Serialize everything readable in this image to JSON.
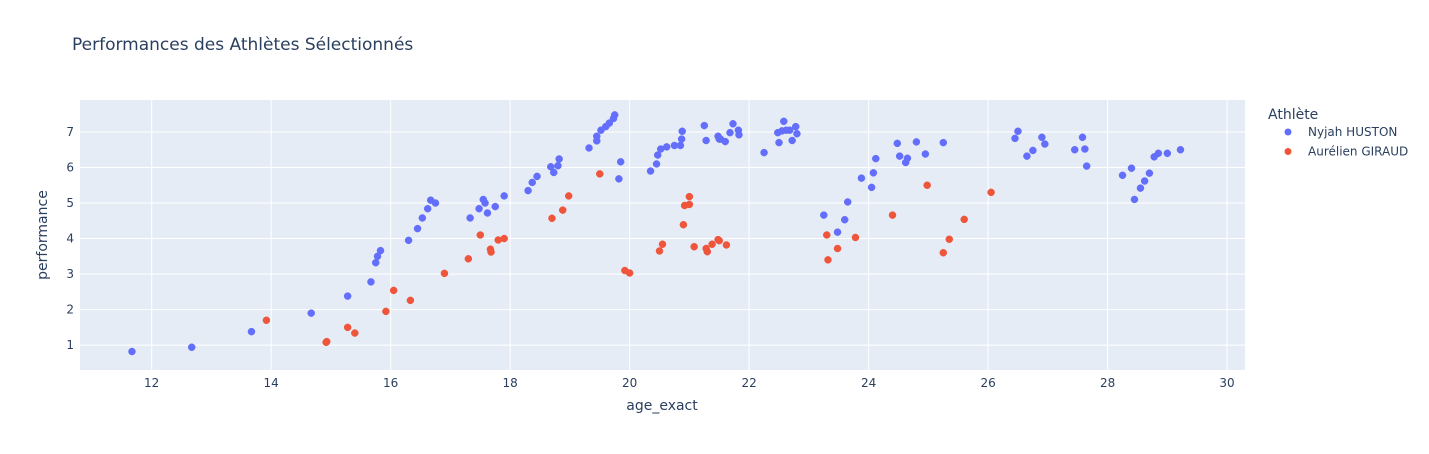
{
  "chart_data": {
    "type": "scatter",
    "title": "Performances des Athlètes Sélectionnés",
    "xlabel": "age_exact",
    "ylabel": "performance",
    "xlim": [
      10.8,
      30.3
    ],
    "ylim": [
      0.3,
      7.9
    ],
    "x_ticks": [
      12,
      14,
      16,
      18,
      20,
      22,
      24,
      26,
      28,
      30
    ],
    "y_ticks": [
      1,
      2,
      3,
      4,
      5,
      6,
      7
    ],
    "grid": true,
    "legend_title": "Athlète",
    "legend_position": "right",
    "series": [
      {
        "name": "Nyjah HUSTON",
        "color": "#636efa",
        "points": [
          [
            11.67,
            0.82
          ],
          [
            12.67,
            0.94
          ],
          [
            13.67,
            1.38
          ],
          [
            14.67,
            1.9
          ],
          [
            15.28,
            2.38
          ],
          [
            15.67,
            2.78
          ],
          [
            15.75,
            3.32
          ],
          [
            15.78,
            3.5
          ],
          [
            15.83,
            3.66
          ],
          [
            16.3,
            3.95
          ],
          [
            16.45,
            4.28
          ],
          [
            16.53,
            4.58
          ],
          [
            16.62,
            4.84
          ],
          [
            16.67,
            5.08
          ],
          [
            16.75,
            5.0
          ],
          [
            17.33,
            4.58
          ],
          [
            17.48,
            4.84
          ],
          [
            17.55,
            5.1
          ],
          [
            17.58,
            5.0
          ],
          [
            17.62,
            4.72
          ],
          [
            17.75,
            4.9
          ],
          [
            17.9,
            5.2
          ],
          [
            18.3,
            5.35
          ],
          [
            18.37,
            5.58
          ],
          [
            18.45,
            5.75
          ],
          [
            18.68,
            6.02
          ],
          [
            18.73,
            5.86
          ],
          [
            18.8,
            6.05
          ],
          [
            18.82,
            6.24
          ],
          [
            19.32,
            6.55
          ],
          [
            19.45,
            6.75
          ],
          [
            19.45,
            6.88
          ],
          [
            19.52,
            7.05
          ],
          [
            19.6,
            7.15
          ],
          [
            19.66,
            7.25
          ],
          [
            19.73,
            7.38
          ],
          [
            19.75,
            7.48
          ],
          [
            19.82,
            5.68
          ],
          [
            19.85,
            6.16
          ],
          [
            20.35,
            5.9
          ],
          [
            20.45,
            6.1
          ],
          [
            20.47,
            6.35
          ],
          [
            20.52,
            6.52
          ],
          [
            20.62,
            6.58
          ],
          [
            20.75,
            6.62
          ],
          [
            20.85,
            6.62
          ],
          [
            20.87,
            6.8
          ],
          [
            20.88,
            7.02
          ],
          [
            21.25,
            7.18
          ],
          [
            21.28,
            6.76
          ],
          [
            21.48,
            6.88
          ],
          [
            21.5,
            6.8
          ],
          [
            21.52,
            6.8
          ],
          [
            21.6,
            6.73
          ],
          [
            21.68,
            6.98
          ],
          [
            21.73,
            7.23
          ],
          [
            21.82,
            7.05
          ],
          [
            21.83,
            6.92
          ],
          [
            22.25,
            6.42
          ],
          [
            22.48,
            6.98
          ],
          [
            22.5,
            6.7
          ],
          [
            22.55,
            7.03
          ],
          [
            22.58,
            7.3
          ],
          [
            22.62,
            7.05
          ],
          [
            22.68,
            7.05
          ],
          [
            22.72,
            6.76
          ],
          [
            22.78,
            7.15
          ],
          [
            22.8,
            6.95
          ],
          [
            23.25,
            4.66
          ],
          [
            23.48,
            4.18
          ],
          [
            23.6,
            4.53
          ],
          [
            23.65,
            5.03
          ],
          [
            23.88,
            5.7
          ],
          [
            24.05,
            5.44
          ],
          [
            24.08,
            5.85
          ],
          [
            24.12,
            6.25
          ],
          [
            24.48,
            6.68
          ],
          [
            24.52,
            6.32
          ],
          [
            24.62,
            6.14
          ],
          [
            24.65,
            6.26
          ],
          [
            24.8,
            6.72
          ],
          [
            24.95,
            6.38
          ],
          [
            25.25,
            6.7
          ],
          [
            26.45,
            6.82
          ],
          [
            26.5,
            7.02
          ],
          [
            26.65,
            6.32
          ],
          [
            26.75,
            6.48
          ],
          [
            26.9,
            6.85
          ],
          [
            26.95,
            6.66
          ],
          [
            27.45,
            6.5
          ],
          [
            27.58,
            6.85
          ],
          [
            27.62,
            6.52
          ],
          [
            27.65,
            6.04
          ],
          [
            28.25,
            5.78
          ],
          [
            28.4,
            5.98
          ],
          [
            28.45,
            5.1
          ],
          [
            28.55,
            5.42
          ],
          [
            28.62,
            5.62
          ],
          [
            28.7,
            5.84
          ],
          [
            28.78,
            6.3
          ],
          [
            28.85,
            6.4
          ],
          [
            29.0,
            6.4
          ],
          [
            29.22,
            6.5
          ]
        ]
      },
      {
        "name": "Aurélien GIRAUD",
        "color": "#ef553b",
        "points": [
          [
            13.92,
            1.7
          ],
          [
            14.92,
            1.08
          ],
          [
            14.93,
            1.1
          ],
          [
            15.28,
            1.5
          ],
          [
            15.4,
            1.34
          ],
          [
            15.92,
            1.95
          ],
          [
            16.05,
            2.54
          ],
          [
            16.33,
            2.26
          ],
          [
            16.9,
            3.02
          ],
          [
            17.3,
            3.43
          ],
          [
            17.5,
            4.1
          ],
          [
            17.67,
            3.7
          ],
          [
            17.68,
            3.62
          ],
          [
            17.8,
            3.96
          ],
          [
            17.9,
            4.0
          ],
          [
            18.7,
            4.57
          ],
          [
            18.88,
            4.8
          ],
          [
            18.98,
            5.2
          ],
          [
            19.5,
            5.82
          ],
          [
            19.92,
            3.1
          ],
          [
            20.0,
            3.03
          ],
          [
            20.5,
            3.65
          ],
          [
            20.55,
            3.84
          ],
          [
            20.9,
            4.39
          ],
          [
            20.92,
            4.93
          ],
          [
            21.0,
            5.18
          ],
          [
            21.0,
            4.96
          ],
          [
            21.08,
            3.77
          ],
          [
            21.28,
            3.72
          ],
          [
            21.3,
            3.63
          ],
          [
            21.38,
            3.84
          ],
          [
            21.48,
            3.97
          ],
          [
            21.5,
            3.94
          ],
          [
            21.62,
            3.82
          ],
          [
            23.3,
            4.1
          ],
          [
            23.32,
            3.4
          ],
          [
            23.48,
            3.72
          ],
          [
            23.78,
            4.03
          ],
          [
            24.4,
            4.66
          ],
          [
            24.98,
            5.5
          ],
          [
            25.25,
            3.6
          ],
          [
            25.35,
            3.98
          ],
          [
            25.6,
            4.54
          ],
          [
            26.05,
            5.3
          ]
        ]
      }
    ]
  }
}
